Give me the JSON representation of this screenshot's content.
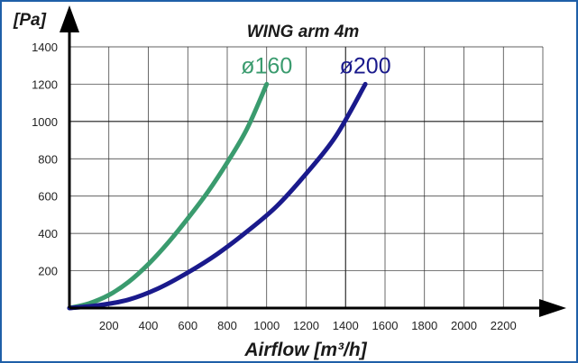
{
  "chart_data": {
    "type": "line",
    "title": "WING arm 4m",
    "ylabel": "[Pa]",
    "xlabel": "Airflow [m³/h]",
    "xlim": [
      0,
      2400
    ],
    "ylim": [
      0,
      1400
    ],
    "x_ticks": [
      200,
      400,
      600,
      800,
      1000,
      1200,
      1400,
      1600,
      1800,
      2000,
      2200
    ],
    "y_ticks": [
      200,
      400,
      600,
      800,
      1000,
      1200,
      1400
    ],
    "grid": true,
    "legend": "inline labels at line ends",
    "series": [
      {
        "name": "ø160",
        "color": "#3a9b6e",
        "x": [
          0,
          100,
          200,
          300,
          400,
          500,
          600,
          700,
          800,
          900,
          1000
        ],
        "y": [
          0,
          25,
          70,
          140,
          235,
          350,
          480,
          620,
          780,
          960,
          1200
        ]
      },
      {
        "name": "ø200",
        "color": "#1a1a8c",
        "x": [
          0,
          150,
          300,
          450,
          600,
          750,
          900,
          1050,
          1200,
          1350,
          1500
        ],
        "y": [
          0,
          15,
          45,
          105,
          190,
          290,
          410,
          545,
          720,
          920,
          1200
        ]
      }
    ]
  }
}
